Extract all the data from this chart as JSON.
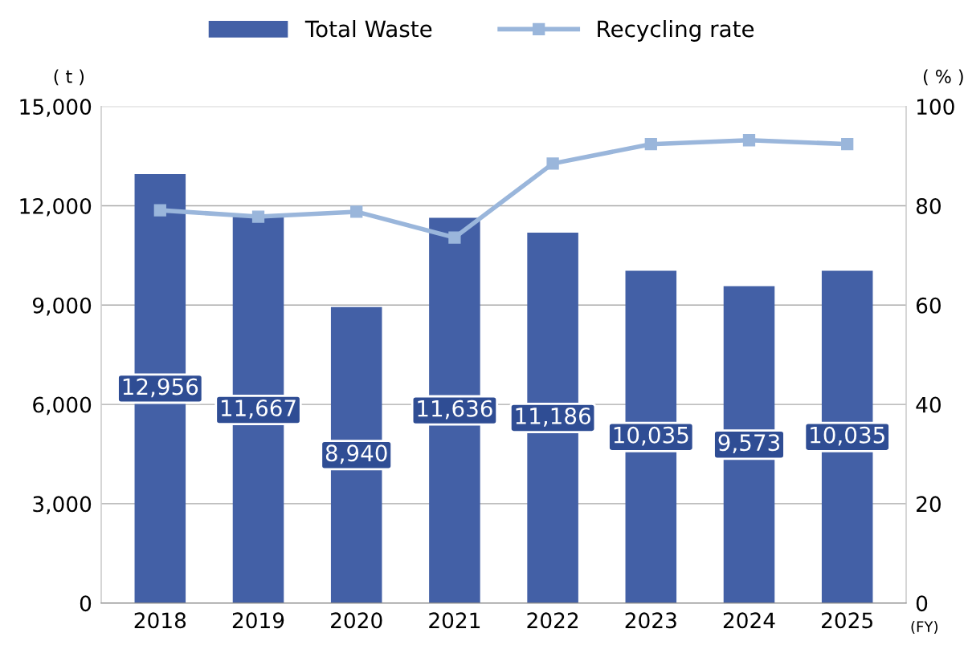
{
  "chart_data": {
    "type": "bar",
    "categories": [
      "2018",
      "2019",
      "2020",
      "2021",
      "2022",
      "2023",
      "2024",
      "2025"
    ],
    "xlabel": "(FY)",
    "ylabel": "( t )",
    "y2label": "( % )",
    "series": [
      {
        "name": "Total Waste",
        "color": "#4360a6",
        "values": [
          12956,
          11667,
          8940,
          11636,
          11186,
          10035,
          9573,
          10035
        ],
        "value_labels": [
          "12,956",
          "11,667",
          "8,940",
          "11,636",
          "11,186",
          "10,035",
          "9,573",
          "10,035"
        ]
      },
      {
        "name": "Recycling rate",
        "type": "line",
        "axis": "y2",
        "color": "#9ab6db",
        "values": [
          79.1,
          77.8,
          78.8,
          73.6,
          88.5,
          92.4,
          93.2,
          92.4
        ]
      }
    ],
    "marker": "square",
    "ylim": [
      0,
      15000
    ],
    "yticks": [
      {
        "value": 0,
        "label": "0"
      },
      {
        "value": 3000,
        "label": "3,000"
      },
      {
        "value": 6000,
        "label": "6,000"
      },
      {
        "value": 9000,
        "label": "9,000"
      },
      {
        "value": 12000,
        "label": "12,000"
      },
      {
        "value": 15000,
        "label": "15,000"
      }
    ],
    "y2lim": [
      0,
      100
    ],
    "y2ticks": [
      0,
      20,
      40,
      60,
      80,
      100
    ],
    "grid": "y",
    "legend": "top"
  }
}
